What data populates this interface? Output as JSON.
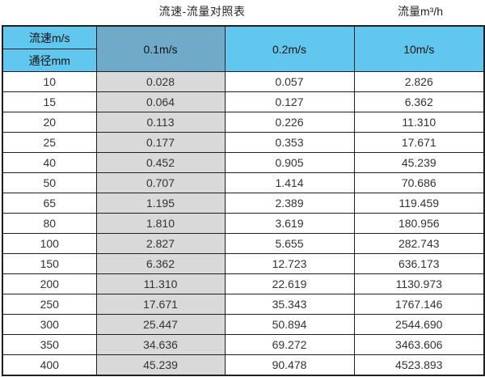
{
  "titles": {
    "left": "流速-流量对照表",
    "right": "流量m³/h"
  },
  "colors": {
    "header_blue": "#62c7ef",
    "header_dark_blue": "#6fabc9",
    "highlight_column_gray": "#d9d9d9",
    "border": "#1f1f1f",
    "background": "#ffffff"
  },
  "chart_data": {
    "type": "table",
    "title": "流速-流量对照表",
    "flow_unit_label": "流量m³/h",
    "corner_label_top": "流速m/s",
    "corner_label_bottom": "通径mm",
    "velocity_columns": [
      "0.1m/s",
      "0.2m/s",
      "10m/s"
    ],
    "rows": [
      {
        "diameter_mm": "10",
        "values": [
          "0.028",
          "0.057",
          "2.826"
        ]
      },
      {
        "diameter_mm": "15",
        "values": [
          "0.064",
          "0.127",
          "6.362"
        ]
      },
      {
        "diameter_mm": "20",
        "values": [
          "0.113",
          "0.226",
          "11.310"
        ]
      },
      {
        "diameter_mm": "25",
        "values": [
          "0.177",
          "0.353",
          "17.671"
        ]
      },
      {
        "diameter_mm": "40",
        "values": [
          "0.452",
          "0.905",
          "45.239"
        ]
      },
      {
        "diameter_mm": "50",
        "values": [
          "0.707",
          "1.414",
          "70.686"
        ]
      },
      {
        "diameter_mm": "65",
        "values": [
          "1.195",
          "2.389",
          "119.459"
        ]
      },
      {
        "diameter_mm": "80",
        "values": [
          "1.810",
          "3.619",
          "180.956"
        ]
      },
      {
        "diameter_mm": "100",
        "values": [
          "2.827",
          "5.655",
          "282.743"
        ]
      },
      {
        "diameter_mm": "150",
        "values": [
          "6.362",
          "12.723",
          "636.173"
        ]
      },
      {
        "diameter_mm": "200",
        "values": [
          "11.310",
          "22.619",
          "1130.973"
        ]
      },
      {
        "diameter_mm": "250",
        "values": [
          "17.671",
          "35.343",
          "1767.146"
        ]
      },
      {
        "diameter_mm": "300",
        "values": [
          "25.447",
          "50.894",
          "2544.690"
        ]
      },
      {
        "diameter_mm": "350",
        "values": [
          "34.636",
          "69.272",
          "3463.606"
        ]
      },
      {
        "diameter_mm": "400",
        "values": [
          "45.239",
          "90.478",
          "4523.893"
        ]
      }
    ]
  }
}
